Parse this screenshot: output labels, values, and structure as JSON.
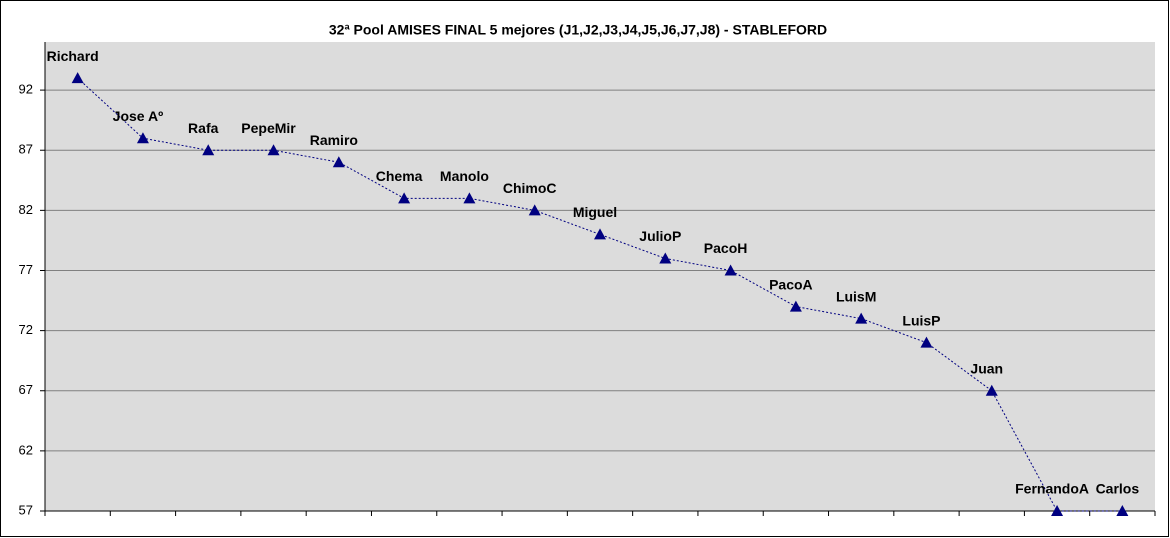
{
  "chart_data": {
    "type": "line",
    "title": "32ª Pool AMISES  FINAL 5 mejores (J1,J2,J3,J4,J5,J6,J7,J8)  - STABLEFORD",
    "categories": [
      "Richard",
      "Jose Aº",
      "Rafa",
      "PepeMir",
      "Ramiro",
      "Chema",
      "Manolo",
      "ChimoC",
      "Miguel",
      "JulioP",
      "PacoH",
      "PacoA",
      "LuisM",
      "LuisP",
      "Juan",
      "FernandoA",
      "Carlos"
    ],
    "series": [
      {
        "name": "Stableford",
        "color": "#000080",
        "values": [
          93,
          88,
          87,
          87,
          86,
          83,
          83,
          82,
          80,
          78,
          77,
          74,
          73,
          71,
          67,
          57,
          57
        ]
      }
    ],
    "ylim": [
      57,
      96
    ],
    "yticks": [
      57,
      62,
      67,
      72,
      77,
      82,
      87,
      92
    ],
    "grid": true
  }
}
